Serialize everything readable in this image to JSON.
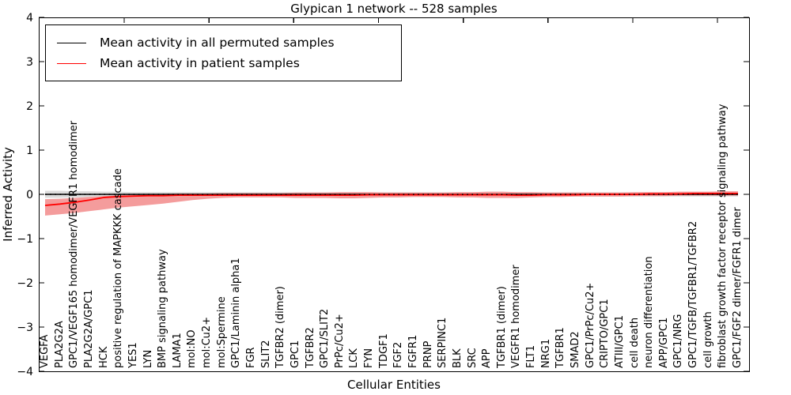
{
  "chart_data": {
    "type": "line",
    "title": "Glypican 1 network -- 528 samples",
    "xlabel": "Cellular Entities",
    "ylabel": "Inferred Activity",
    "ylim": [
      -4,
      4
    ],
    "yticks": [
      4,
      3,
      2,
      1,
      0,
      -1,
      -2,
      -3,
      -4
    ],
    "grid": false,
    "legend_position": "upper left",
    "categories": [
      "VEGFA",
      "PLA2G2A",
      "GPC1/VEGF165 homodimer/VEGFR1 homodimer",
      "PLA2G2A/GPC1",
      "HCK",
      "positive regulation of MAPKKK cascade",
      "YES1",
      "LYN",
      "BMP signaling pathway",
      "LAMA1",
      "mol:NO",
      "mol:Cu2+",
      "mol:Spermine",
      "GPC1/Laminin alpha1",
      "FGR",
      "SLIT2",
      "TGFBR2 (dimer)",
      "GPC1",
      "TGFBR2",
      "GPC1/SLIT2",
      "PrPc/Cu2+",
      "LCK",
      "FYN",
      "TDGF1",
      "FGF2",
      "FGFR1",
      "PRNP",
      "SERPINC1",
      "BLK",
      "SRC",
      "APP",
      "TGFBR1 (dimer)",
      "VEGFR1 homodimer",
      "FLT1",
      "NRG1",
      "TGFBR1",
      "SMAD2",
      "GPC1/PrPc/Cu2+",
      "CRIPTO/GPC1",
      "ATIII/GPC1",
      "cell death",
      "neuron differentiation",
      "APP/GPC1",
      "GPC1/NRG",
      "GPC1/TGFB/TGFBR1/TGFBR2",
      "cell growth",
      "fibroblast growth factor receptor signaling pathway",
      "GPC1/FGF2 dimer/FGFR1 dimer"
    ],
    "series": [
      {
        "name": "Mean activity in all permuted samples",
        "color": "#000000",
        "band_color": "#dcdcdc",
        "values": [
          0,
          0,
          0,
          0,
          0,
          0,
          0,
          0,
          0,
          0,
          0,
          0,
          0,
          0,
          0,
          0,
          0,
          0,
          0,
          0,
          0,
          0,
          0,
          0,
          0,
          0,
          0,
          0,
          0,
          0,
          0,
          0,
          0,
          0,
          0,
          0,
          0,
          0,
          0,
          0,
          0,
          0,
          0,
          0,
          0,
          0,
          0,
          0
        ],
        "band_lo": [
          -0.08,
          -0.08,
          -0.07,
          -0.07,
          -0.06,
          -0.06,
          -0.05,
          -0.05,
          -0.05,
          -0.05,
          -0.05,
          -0.05,
          -0.05,
          -0.05,
          -0.05,
          -0.05,
          -0.05,
          -0.05,
          -0.05,
          -0.05,
          -0.05,
          -0.05,
          -0.05,
          -0.05,
          -0.05,
          -0.05,
          -0.05,
          -0.05,
          -0.05,
          -0.05,
          -0.05,
          -0.05,
          -0.05,
          -0.05,
          -0.05,
          -0.05,
          -0.05,
          -0.05,
          -0.05,
          -0.05,
          -0.05,
          -0.05,
          -0.05,
          -0.05,
          -0.05,
          -0.05,
          -0.05,
          -0.05
        ],
        "band_hi": [
          0.08,
          0.08,
          0.07,
          0.07,
          0.06,
          0.06,
          0.05,
          0.05,
          0.05,
          0.05,
          0.05,
          0.05,
          0.05,
          0.05,
          0.05,
          0.05,
          0.05,
          0.05,
          0.05,
          0.05,
          0.05,
          0.05,
          0.05,
          0.05,
          0.05,
          0.05,
          0.05,
          0.05,
          0.05,
          0.05,
          0.05,
          0.05,
          0.05,
          0.05,
          0.05,
          0.05,
          0.05,
          0.05,
          0.05,
          0.05,
          0.05,
          0.05,
          0.05,
          0.05,
          0.05,
          0.05,
          0.05,
          0.05
        ]
      },
      {
        "name": "Mean activity in patient samples",
        "color": "#ff0000",
        "band_color": "#f49c9c",
        "values": [
          -0.25,
          -0.22,
          -0.18,
          -0.13,
          -0.07,
          -0.05,
          -0.04,
          -0.03,
          -0.03,
          -0.02,
          -0.02,
          -0.02,
          -0.02,
          -0.02,
          -0.02,
          -0.02,
          -0.02,
          -0.02,
          -0.02,
          -0.02,
          -0.02,
          -0.02,
          -0.01,
          -0.01,
          -0.01,
          -0.01,
          -0.01,
          -0.01,
          -0.01,
          -0.01,
          -0.01,
          -0.01,
          -0.02,
          -0.02,
          -0.01,
          -0.01,
          -0.01,
          0,
          0,
          0,
          0,
          0.01,
          0.01,
          0.01,
          0.02,
          0.02,
          0.02,
          0.02
        ],
        "band_lo": [
          -0.48,
          -0.45,
          -0.42,
          -0.38,
          -0.34,
          -0.3,
          -0.27,
          -0.24,
          -0.21,
          -0.17,
          -0.13,
          -0.1,
          -0.08,
          -0.07,
          -0.07,
          -0.07,
          -0.07,
          -0.08,
          -0.08,
          -0.08,
          -0.09,
          -0.09,
          -0.08,
          -0.07,
          -0.07,
          -0.06,
          -0.06,
          -0.06,
          -0.07,
          -0.07,
          -0.08,
          -0.08,
          -0.08,
          -0.07,
          -0.06,
          -0.06,
          -0.05,
          -0.05,
          -0.05,
          -0.05,
          -0.04,
          -0.04,
          -0.04,
          -0.03,
          -0.03,
          -0.03,
          -0.03,
          -0.03
        ],
        "band_hi": [
          -0.11,
          -0.1,
          -0.08,
          -0.06,
          -0.04,
          -0.02,
          -0.01,
          0,
          0.01,
          0.02,
          0.02,
          0.02,
          0.03,
          0.03,
          0.03,
          0.03,
          0.03,
          0.04,
          0.04,
          0.04,
          0.05,
          0.05,
          0.05,
          0.04,
          0.04,
          0.04,
          0.04,
          0.04,
          0.05,
          0.05,
          0.06,
          0.06,
          0.05,
          0.05,
          0.04,
          0.04,
          0.04,
          0.04,
          0.04,
          0.04,
          0.05,
          0.05,
          0.05,
          0.06,
          0.06,
          0.06,
          0.07,
          0.07
        ]
      }
    ]
  },
  "colors": {
    "frame": "#000000",
    "background": "#ffffff",
    "patient_line": "#ff0000",
    "permuted_line": "#000000",
    "patient_band": "#f49c9c",
    "permuted_band": "#dcdcdc"
  }
}
